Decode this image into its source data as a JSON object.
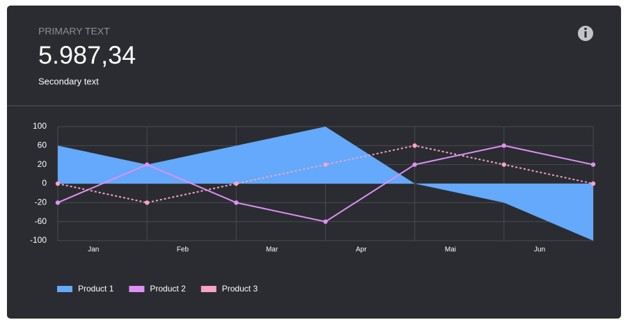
{
  "header": {
    "label": "PRIMARY TEXT",
    "value": "5.987,34",
    "caption": "Secondary text"
  },
  "chart_data": {
    "type": "line",
    "categories": [
      "Jan",
      "Feb",
      "Mar",
      "Apr",
      "Mai",
      "Jun",
      null
    ],
    "series": [
      {
        "name": "Product 1",
        "color": "#64a9fb",
        "style": "area",
        "values": [
          60,
          20,
          60,
          100,
          0,
          -20,
          -100
        ]
      },
      {
        "name": "Product 2",
        "color": "#e08ff6",
        "style": "solid",
        "values": [
          -20,
          20,
          -20,
          -60,
          20,
          60,
          20
        ]
      },
      {
        "name": "Product 3",
        "color": "#f7a3c6",
        "style": "dashed",
        "values": [
          0,
          -20,
          0,
          20,
          60,
          20,
          0
        ]
      }
    ],
    "ylim": [
      -100,
      100
    ],
    "yticks": [
      -100,
      -60,
      -20,
      0,
      20,
      60,
      100
    ],
    "grid": true,
    "legend": "bottom-left"
  }
}
